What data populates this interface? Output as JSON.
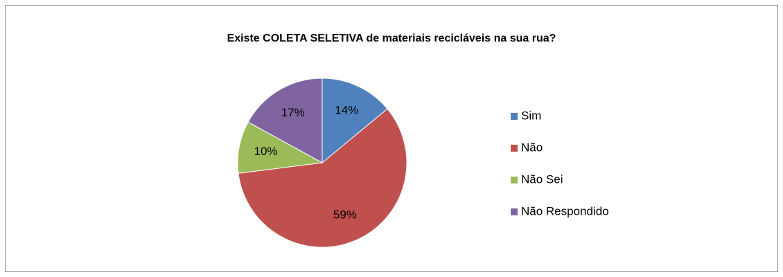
{
  "chart_data": {
    "type": "pie",
    "title": "Existe COLETA SELETIVA de materiais recicláveis na sua rua?",
    "categories": [
      "Sim",
      "Não",
      "Não Sei",
      "Não Respondido"
    ],
    "values": [
      14,
      59,
      10,
      17
    ],
    "value_labels": [
      "14%",
      "59%",
      "10%",
      "17%"
    ],
    "colors": [
      "#4f81bd",
      "#c0504d",
      "#9bbb59",
      "#8064a2"
    ],
    "legend": "right"
  }
}
